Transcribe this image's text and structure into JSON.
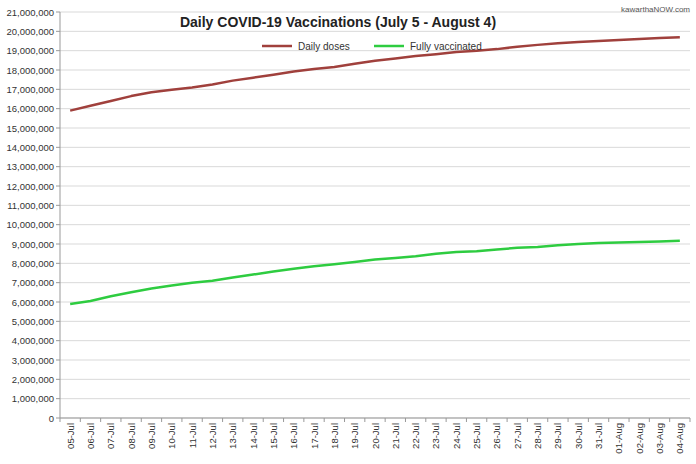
{
  "chart_data": {
    "type": "line",
    "title": "Daily COVID-19 Vaccinations (July 5 - August 4)",
    "annotations": [
      "kawarthaNOW.com"
    ],
    "categories": [
      "05-Jul",
      "06-Jul",
      "07-Jul",
      "08-Jul",
      "09-Jul",
      "10-Jul",
      "11-Jul",
      "12-Jul",
      "13-Jul",
      "14-Jul",
      "15-Jul",
      "16-Jul",
      "17-Jul",
      "18-Jul",
      "19-Jul",
      "20-Jul",
      "21-Jul",
      "22-Jul",
      "23-Jul",
      "24-Jul",
      "25-Jul",
      "26-Jul",
      "27-Jul",
      "28-Jul",
      "29-Jul",
      "30-Jul",
      "31-Jul",
      "01-Aug",
      "02-Aug",
      "03-Aug",
      "04-Aug"
    ],
    "series": [
      {
        "name": "Daily doses",
        "color": "#a0403c",
        "values": [
          15900000,
          16150000,
          16400000,
          16650000,
          16850000,
          16980000,
          17100000,
          17250000,
          17450000,
          17600000,
          17750000,
          17920000,
          18050000,
          18150000,
          18320000,
          18480000,
          18600000,
          18720000,
          18820000,
          18930000,
          19000000,
          19080000,
          19200000,
          19300000,
          19380000,
          19450000,
          19500000,
          19550000,
          19600000,
          19650000,
          19700000
        ]
      },
      {
        "name": "Fully vaccinated",
        "color": "#2ecc40",
        "values": [
          5900000,
          6050000,
          6300000,
          6500000,
          6700000,
          6850000,
          7000000,
          7100000,
          7270000,
          7420000,
          7580000,
          7720000,
          7850000,
          7950000,
          8070000,
          8200000,
          8280000,
          8370000,
          8500000,
          8580000,
          8630000,
          8720000,
          8800000,
          8850000,
          8930000,
          9000000,
          9050000,
          9080000,
          9100000,
          9130000,
          9170000
        ]
      }
    ],
    "ylim": [
      0,
      21000000
    ],
    "yticks": [
      0,
      {
        "value": 1000000,
        "label": "1,000,000"
      },
      {
        "value": 2000000,
        "label": "2,000,000"
      },
      {
        "value": 3000000,
        "label": "3,000,000"
      },
      {
        "value": 4000000,
        "label": "4,000,000"
      },
      {
        "value": 5000000,
        "label": "5,000,000"
      },
      {
        "value": 6000000,
        "label": "6,000,000"
      },
      {
        "value": 7000000,
        "label": "7,000,000"
      },
      {
        "value": 8000000,
        "label": "8,000,000"
      },
      {
        "value": 9000000,
        "label": "9,000,000"
      },
      {
        "value": 10000000,
        "label": "10,000,000"
      },
      {
        "value": 11000000,
        "label": "11,000,000"
      },
      {
        "value": 12000000,
        "label": "12,000,000"
      },
      {
        "value": 13000000,
        "label": "13,000,000"
      },
      {
        "value": 14000000,
        "label": "14,000,000"
      },
      {
        "value": 15000000,
        "label": "15,000,000"
      },
      {
        "value": 16000000,
        "label": "16,000,000"
      },
      {
        "value": 17000000,
        "label": "17,000,000"
      },
      {
        "value": 18000000,
        "label": "18,000,000"
      },
      {
        "value": 19000000,
        "label": "19,000,000"
      },
      {
        "value": 20000000,
        "label": "20,000,000"
      },
      {
        "value": 21000000,
        "label": "21,000,000"
      }
    ],
    "grid": true,
    "legend": "top"
  }
}
